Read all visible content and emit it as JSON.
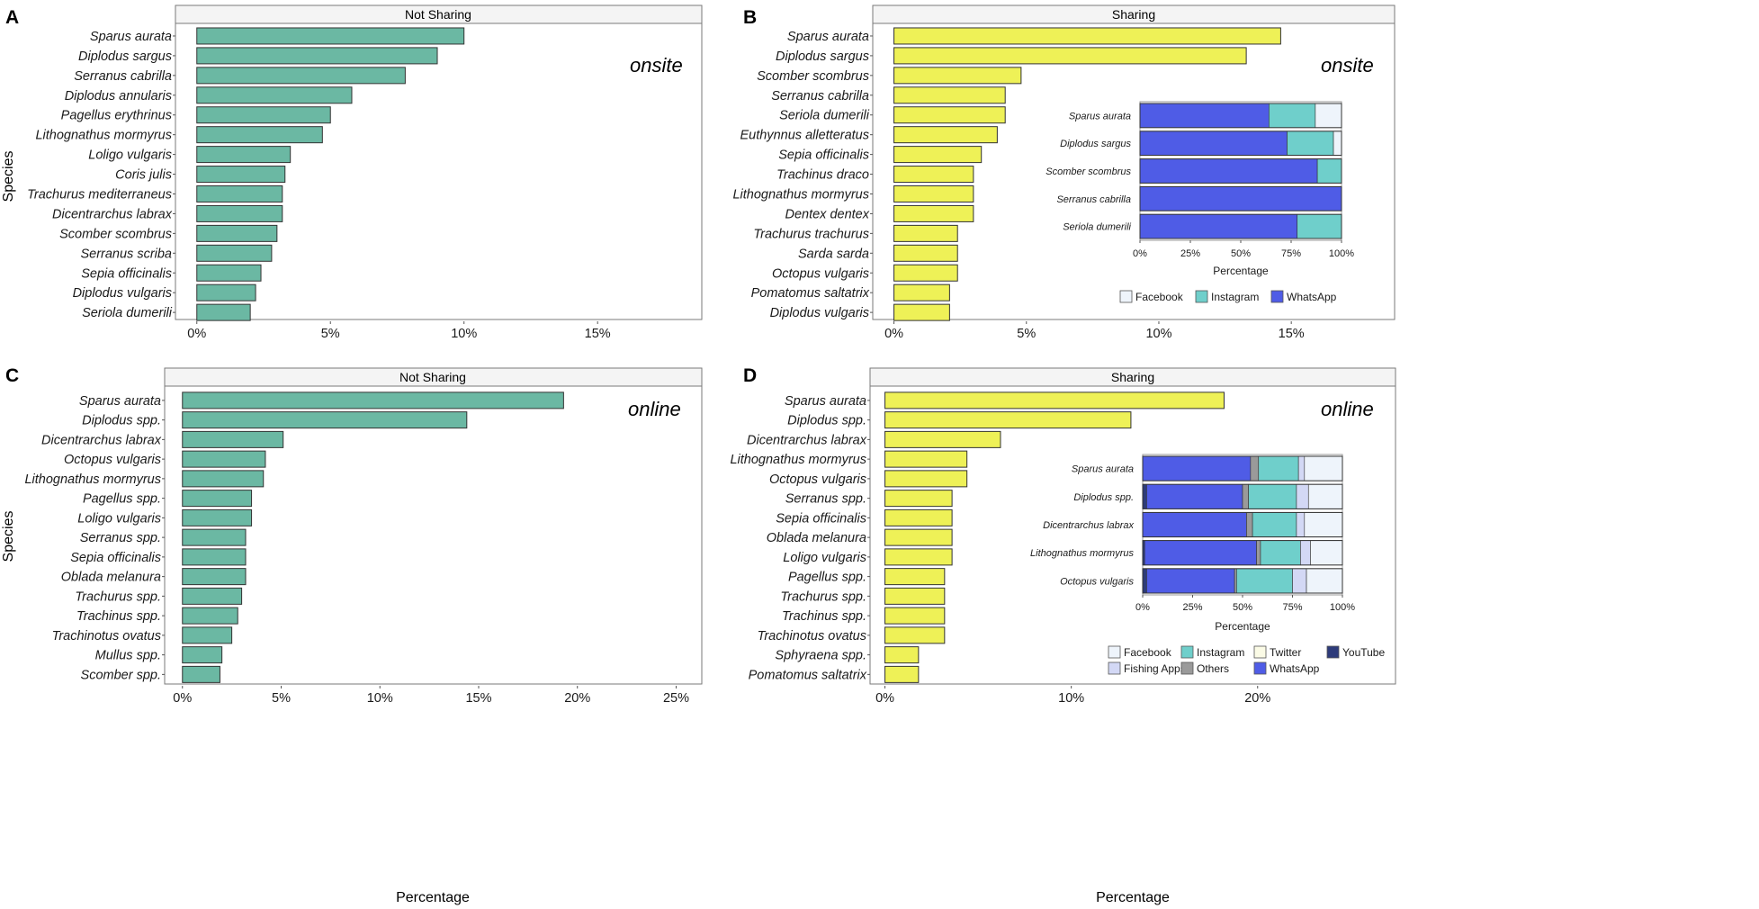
{
  "figure": {
    "ylabel": "Species",
    "xlabel": "Percentage",
    "colors": {
      "not_sharing": "#6bb8a3",
      "sharing": "#eef157",
      "facebook": "#eef4fb",
      "instagram": "#6fcfcb",
      "whatsapp": "#4f5ce6",
      "twitter": "#fbfbe6",
      "youtube": "#2d3b7a",
      "fishing_apps": "#d3d8f5",
      "others": "#9a9a9a"
    }
  },
  "chart_data": [
    {
      "panel": "A",
      "type": "bar",
      "orientation": "horizontal",
      "strip": "Not Sharing",
      "mode_label": "onsite",
      "color_key": "not_sharing",
      "xlim": [
        -0.8,
        18.9
      ],
      "ticks": [
        0,
        5,
        10,
        15
      ],
      "tick_labels": [
        "0%",
        "5%",
        "10%",
        "15%"
      ],
      "xlabel": "",
      "ylabel": "Species",
      "categories": [
        "Sparus aurata",
        "Diplodus sargus",
        "Serranus cabrilla",
        "Diplodus annularis",
        "Pagellus erythrinus",
        "Lithognathus mormyrus",
        "Loligo vulgaris",
        "Coris julis",
        "Trachurus mediterraneus",
        "Dicentrarchus labrax",
        "Scomber scombrus",
        "Serranus scriba",
        "Sepia officinalis",
        "Diplodus vulgaris",
        "Seriola dumerili"
      ],
      "values": [
        10.0,
        9.0,
        7.8,
        5.8,
        5.0,
        4.7,
        3.5,
        3.3,
        3.2,
        3.2,
        3.0,
        2.8,
        2.4,
        2.2,
        2.0
      ]
    },
    {
      "panel": "B",
      "type": "bar",
      "orientation": "horizontal",
      "strip": "Sharing",
      "mode_label": "onsite",
      "color_key": "sharing",
      "xlim": [
        -0.8,
        18.9
      ],
      "ticks": [
        0,
        5,
        10,
        15
      ],
      "tick_labels": [
        "0%",
        "5%",
        "10%",
        "15%"
      ],
      "xlabel": "",
      "ylabel": "",
      "categories": [
        "Sparus aurata",
        "Diplodus sargus",
        "Scomber scombrus",
        "Serranus cabrilla",
        "Seriola dumerili",
        "Euthynnus alletteratus",
        "Sepia officinalis",
        "Trachinus draco",
        "Lithognathus mormyrus",
        "Dentex dentex",
        "Trachurus trachurus",
        "Sarda sarda",
        "Octopus vulgaris",
        "Pomatomus saltatrix",
        "Diplodus vulgaris"
      ],
      "values": [
        14.6,
        13.3,
        4.8,
        4.2,
        4.2,
        3.9,
        3.3,
        3.0,
        3.0,
        3.0,
        2.4,
        2.4,
        2.4,
        2.1,
        2.1
      ],
      "inset": {
        "type": "stacked-bar",
        "xlabel": "Percentage",
        "tick_labels": [
          "0%",
          "25%",
          "50%",
          "75%",
          "100%"
        ],
        "categories": [
          "Sparus aurata",
          "Diplodus sargus",
          "Scomber scombrus",
          "Serranus cabrilla",
          "Seriola dumerili"
        ],
        "series": [
          {
            "key": "whatsapp",
            "values": [
              64,
              73,
              88,
              100,
              78
            ]
          },
          {
            "key": "instagram",
            "values": [
              23,
              23,
              12,
              0,
              22
            ]
          },
          {
            "key": "facebook",
            "values": [
              13,
              4,
              0,
              0,
              0
            ]
          }
        ],
        "legend": [
          {
            "key": "facebook",
            "label": "Facebook"
          },
          {
            "key": "instagram",
            "label": "Instagram"
          },
          {
            "key": "whatsapp",
            "label": "WhatsApp"
          }
        ]
      }
    },
    {
      "panel": "C",
      "type": "bar",
      "orientation": "horizontal",
      "strip": "Not Sharing",
      "mode_label": "online",
      "color_key": "not_sharing",
      "xlim": [
        -0.9,
        26.3
      ],
      "ticks": [
        0,
        5,
        10,
        15,
        20,
        25
      ],
      "tick_labels": [
        "0%",
        "5%",
        "10%",
        "15%",
        "20%",
        "25%"
      ],
      "xlabel": "Percentage",
      "ylabel": "Species",
      "categories": [
        "Sparus aurata",
        "Diplodus spp.",
        "Dicentrarchus labrax",
        "Octopus vulgaris",
        "Lithognathus mormyrus",
        "Pagellus spp.",
        "Loligo vulgaris",
        "Serranus spp.",
        "Sepia officinalis",
        "Oblada melanura",
        "Trachurus spp.",
        "Trachinus spp.",
        "Trachinotus ovatus",
        "Mullus spp.",
        "Scomber spp."
      ],
      "values": [
        19.3,
        14.4,
        5.1,
        4.2,
        4.1,
        3.5,
        3.5,
        3.2,
        3.2,
        3.2,
        3.0,
        2.8,
        2.5,
        2.0,
        1.9
      ]
    },
    {
      "panel": "D",
      "type": "bar",
      "orientation": "horizontal",
      "strip": "Sharing",
      "mode_label": "online",
      "color_key": "sharing",
      "xlim": [
        -0.8,
        27.4
      ],
      "ticks": [
        0,
        10,
        20
      ],
      "tick_labels": [
        "0%",
        "10%",
        "20%"
      ],
      "xlabel": "Percentage",
      "ylabel": "",
      "categories": [
        "Sparus aurata",
        "Diplodus spp.",
        "Dicentrarchus labrax",
        "Lithognathus mormyrus",
        "Octopus vulgaris",
        "Serranus spp.",
        "Sepia officinalis",
        "Oblada melanura",
        "Loligo vulgaris",
        "Pagellus spp.",
        "Trachurus spp.",
        "Trachinus spp.",
        "Trachinotus ovatus",
        "Sphyraena spp.",
        "Pomatomus saltatrix"
      ],
      "values": [
        18.2,
        13.2,
        6.2,
        4.4,
        4.4,
        3.6,
        3.6,
        3.6,
        3.6,
        3.2,
        3.2,
        3.2,
        3.2,
        1.8,
        1.8
      ],
      "inset": {
        "type": "stacked-bar",
        "xlabel": "Percentage",
        "tick_labels": [
          "0%",
          "25%",
          "50%",
          "75%",
          "100%"
        ],
        "categories": [
          "Sparus aurata",
          "Diplodus spp.",
          "Dicentrarchus labrax",
          "Lithognathus mormyrus",
          "Octopus vulgaris"
        ],
        "series": [
          {
            "key": "youtube",
            "values": [
              0,
              2,
              0,
              1,
              2
            ]
          },
          {
            "key": "whatsapp",
            "values": [
              54,
              48,
              52,
              56,
              44
            ]
          },
          {
            "key": "others",
            "values": [
              4,
              3,
              3,
              2,
              1
            ]
          },
          {
            "key": "instagram",
            "values": [
              20,
              24,
              22,
              20,
              28
            ]
          },
          {
            "key": "fishing_apps",
            "values": [
              3,
              6,
              4,
              5,
              7
            ]
          },
          {
            "key": "twitter",
            "values": [
              0,
              0,
              0,
              0,
              0
            ]
          },
          {
            "key": "facebook",
            "values": [
              19,
              17,
              19,
              16,
              18
            ]
          }
        ],
        "legend": [
          {
            "key": "facebook",
            "label": "Facebook"
          },
          {
            "key": "instagram",
            "label": "Instagram"
          },
          {
            "key": "twitter",
            "label": "Twitter"
          },
          {
            "key": "youtube",
            "label": "YouTube"
          },
          {
            "key": "fishing_apps",
            "label": "Fishing Apps"
          },
          {
            "key": "others",
            "label": "Others"
          },
          {
            "key": "whatsapp",
            "label": "WhatsApp"
          }
        ]
      }
    }
  ]
}
